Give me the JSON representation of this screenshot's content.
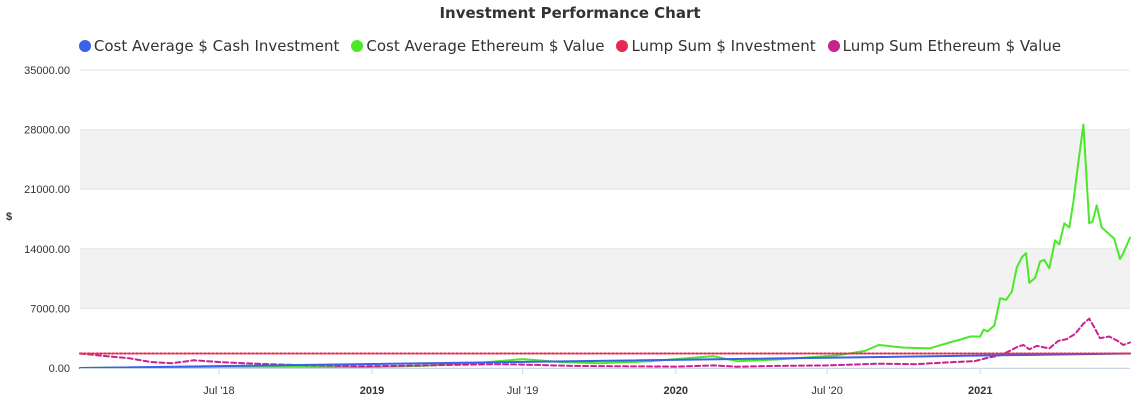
{
  "chart_data": {
    "type": "line",
    "title": "Investment Performance Chart",
    "ylabel": "$",
    "xlabel": "",
    "ylim": [
      0,
      35000
    ],
    "y_ticks": [
      "35000.00",
      "28000.00",
      "21000.00",
      "14000.00",
      "7000.00",
      "0.00"
    ],
    "y_tick_values": [
      35000,
      28000,
      21000,
      14000,
      7000,
      0
    ],
    "xlim": [
      "2018-01-15",
      "2021-06-30"
    ],
    "x_ticks": [
      {
        "label": "Jul '18",
        "date": "2018-07-01",
        "bold": false
      },
      {
        "label": "2019",
        "date": "2019-01-01",
        "bold": true
      },
      {
        "label": "Jul '19",
        "date": "2019-07-01",
        "bold": false
      },
      {
        "label": "2020",
        "date": "2020-01-01",
        "bold": true
      },
      {
        "label": "Jul '20",
        "date": "2020-07-01",
        "bold": false
      },
      {
        "label": "2021",
        "date": "2021-01-01",
        "bold": true
      }
    ],
    "grid": true,
    "legend_position": "top-center",
    "series": [
      {
        "name": "Cost Average $ Cash Investment",
        "color": "#3a62e8",
        "style": "solid",
        "x": [
          "2018-01-15",
          "2021-06-30"
        ],
        "y": [
          0,
          1700
        ]
      },
      {
        "name": "Cost Average Ethereum $ Value",
        "color": "#4be82a",
        "style": "solid",
        "x": [
          "2018-01-15",
          "2018-04-01",
          "2018-07-01",
          "2018-10-01",
          "2018-12-15",
          "2019-03-01",
          "2019-05-15",
          "2019-07-01",
          "2019-08-15",
          "2019-10-01",
          "2019-12-01",
          "2020-02-15",
          "2020-03-15",
          "2020-05-01",
          "2020-07-15",
          "2020-08-15",
          "2020-09-01",
          "2020-10-01",
          "2020-11-01",
          "2020-11-25",
          "2020-12-10",
          "2020-12-20",
          "2021-01-01",
          "2021-01-05",
          "2021-01-10",
          "2021-01-18",
          "2021-01-25",
          "2021-02-01",
          "2021-02-08",
          "2021-02-14",
          "2021-02-20",
          "2021-02-25",
          "2021-03-01",
          "2021-03-08",
          "2021-03-14",
          "2021-03-19",
          "2021-03-25",
          "2021-04-01",
          "2021-04-06",
          "2021-04-12",
          "2021-04-18",
          "2021-04-23",
          "2021-04-28",
          "2021-05-05",
          "2021-05-12",
          "2021-05-16",
          "2021-05-21",
          "2021-05-27",
          "2021-06-03",
          "2021-06-11",
          "2021-06-18",
          "2021-06-22",
          "2021-06-30"
        ],
        "y": [
          0,
          60,
          150,
          140,
          90,
          250,
          650,
          1050,
          700,
          550,
          800,
          1400,
          800,
          1000,
          1500,
          2000,
          2700,
          2400,
          2300,
          3000,
          3400,
          3700,
          3700,
          4500,
          4300,
          5000,
          8200,
          8000,
          9000,
          11800,
          13000,
          13500,
          10000,
          10600,
          12500,
          12700,
          11700,
          15000,
          14500,
          17000,
          16500,
          19500,
          23500,
          28600,
          17000,
          17200,
          19100,
          16500,
          15900,
          15200,
          12800,
          13500,
          15300
        ]
      },
      {
        "name": "Lump Sum $ Investment",
        "color": "#e8294f",
        "style": "dotted",
        "x": [
          "2018-01-15",
          "2021-06-30"
        ],
        "y": [
          1700,
          1700
        ]
      },
      {
        "name": "Lump Sum Ethereum $ Value",
        "color": "#c7238f",
        "style": "dashed",
        "x": [
          "2018-01-15",
          "2018-02-15",
          "2018-03-15",
          "2018-04-10",
          "2018-05-05",
          "2018-06-01",
          "2018-07-01",
          "2018-08-01",
          "2018-09-01",
          "2018-10-01",
          "2018-11-01",
          "2018-12-15",
          "2019-02-01",
          "2019-04-01",
          "2019-06-01",
          "2019-07-01",
          "2019-09-01",
          "2019-11-01",
          "2020-01-01",
          "2020-02-15",
          "2020-03-15",
          "2020-05-01",
          "2020-07-01",
          "2020-09-01",
          "2020-10-15",
          "2020-12-01",
          "2020-12-25",
          "2021-01-10",
          "2021-01-25",
          "2021-02-05",
          "2021-02-15",
          "2021-02-22",
          "2021-03-01",
          "2021-03-10",
          "2021-03-25",
          "2021-04-05",
          "2021-04-15",
          "2021-04-25",
          "2021-05-05",
          "2021-05-12",
          "2021-05-18",
          "2021-05-25",
          "2021-06-05",
          "2021-06-15",
          "2021-06-22",
          "2021-06-30"
        ],
        "y": [
          1700,
          1400,
          1150,
          700,
          550,
          900,
          700,
          550,
          450,
          350,
          300,
          200,
          250,
          350,
          450,
          400,
          250,
          200,
          170,
          300,
          150,
          250,
          300,
          500,
          450,
          700,
          800,
          1200,
          1500,
          2000,
          2500,
          2700,
          2200,
          2600,
          2300,
          3200,
          3400,
          4000,
          5200,
          5800,
          4800,
          3500,
          3700,
          3200,
          2700,
          3000
        ]
      }
    ]
  }
}
